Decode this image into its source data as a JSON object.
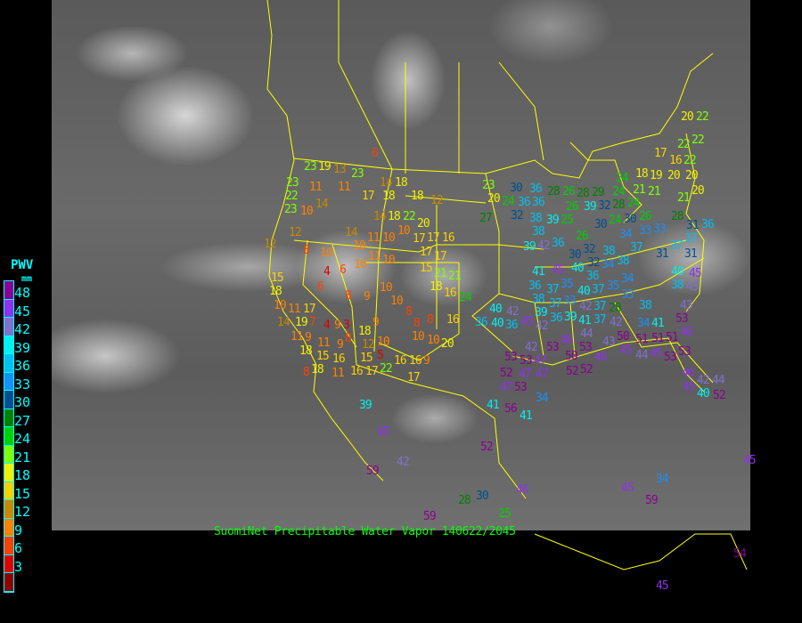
{
  "title": "SuomiNet Precipitable Water Vapor 140622/2045",
  "legend": {
    "title": "PWV",
    "unit": "mm",
    "labels": [
      "48",
      "45",
      "42",
      "39",
      "36",
      "33",
      "30",
      "27",
      "24",
      "21",
      "18",
      "15",
      "12",
      "9",
      "6",
      "3"
    ],
    "colors": [
      "#8b0094",
      "#9030f0",
      "#8070d0",
      "#00f0f0",
      "#00c0f0",
      "#1890f8",
      "#005090",
      "#008000",
      "#00d000",
      "#80ff00",
      "#f0f000",
      "#f8d000",
      "#c88800",
      "#ff8000",
      "#ff4000",
      "#e00000",
      "#900000"
    ]
  },
  "map_line_color": "#ffff00",
  "stations": [
    23,
    19,
    13,
    23,
    23,
    22,
    11,
    11,
    23,
    10,
    14,
    17,
    18,
    18,
    12,
    14,
    18,
    6,
    14,
    18,
    22,
    10,
    20,
    17,
    12,
    12,
    14,
    10,
    11,
    10,
    17,
    16,
    8,
    10,
    11,
    10,
    17,
    17,
    15,
    21,
    21,
    18,
    16,
    24,
    4,
    6,
    6,
    8,
    10,
    10,
    9,
    10,
    8,
    15,
    18,
    10,
    11,
    17,
    19,
    14,
    11,
    7,
    4,
    9,
    3,
    8,
    18,
    9,
    8,
    8,
    16,
    9,
    11,
    18,
    9,
    15,
    16,
    12,
    10,
    15,
    5,
    18,
    8,
    11,
    16,
    17,
    22,
    16,
    10,
    10,
    20,
    16,
    9,
    17,
    39,
    45,
    42,
    59,
    59,
    28,
    30,
    52,
    46,
    45,
    34,
    59,
    45,
    54,
    45,
    25,
    23,
    20,
    24,
    27,
    30,
    36,
    36,
    32,
    36,
    28,
    26,
    28,
    26,
    39,
    29,
    32,
    28,
    24,
    30,
    34,
    24,
    24,
    30,
    26,
    25,
    39,
    38,
    38,
    39,
    42,
    36,
    30,
    32,
    32,
    34,
    38,
    38,
    37,
    33,
    33,
    28,
    31,
    37,
    36,
    37,
    31,
    31,
    40,
    38,
    45,
    43,
    43,
    53,
    46,
    41,
    45,
    35,
    37,
    36,
    38,
    37,
    39,
    36,
    33,
    39,
    40,
    37,
    35,
    36,
    40,
    34,
    33,
    42,
    41,
    37,
    37,
    28,
    38,
    42,
    34,
    41,
    44,
    43,
    50,
    45,
    44,
    45,
    51,
    51,
    53,
    51,
    53,
    46,
    45,
    42,
    44,
    40,
    52,
    52,
    53,
    42,
    47,
    53,
    47,
    52,
    53,
    47,
    47,
    53,
    56,
    41,
    41,
    34,
    36,
    40,
    40,
    42,
    45,
    42,
    36,
    46,
    53,
    50,
    46,
    52,
    20,
    22,
    22,
    17,
    16,
    22,
    22,
    19,
    20,
    20,
    20,
    21,
    21,
    21,
    18,
    26,
    24
  ]
}
